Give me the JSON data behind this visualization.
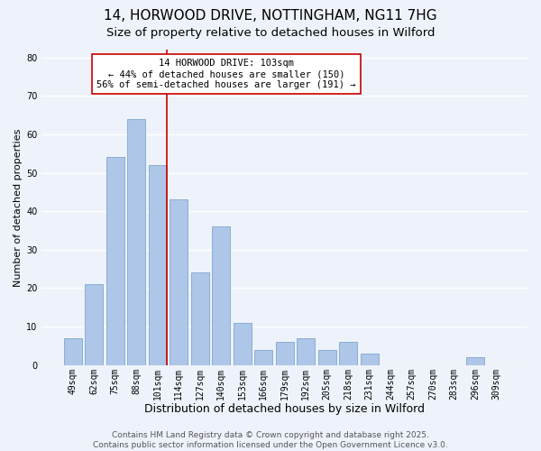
{
  "title": "14, HORWOOD DRIVE, NOTTINGHAM, NG11 7HG",
  "subtitle": "Size of property relative to detached houses in Wilford",
  "xlabel": "Distribution of detached houses by size in Wilford",
  "ylabel": "Number of detached properties",
  "categories": [
    "49sqm",
    "62sqm",
    "75sqm",
    "88sqm",
    "101sqm",
    "114sqm",
    "127sqm",
    "140sqm",
    "153sqm",
    "166sqm",
    "179sqm",
    "192sqm",
    "205sqm",
    "218sqm",
    "231sqm",
    "244sqm",
    "257sqm",
    "270sqm",
    "283sqm",
    "296sqm",
    "309sqm"
  ],
  "values": [
    7,
    21,
    54,
    64,
    52,
    43,
    24,
    36,
    11,
    4,
    6,
    7,
    4,
    6,
    3,
    0,
    0,
    0,
    0,
    2,
    0
  ],
  "bar_color": "#aec6e8",
  "bar_edge_color": "#88afd4",
  "vline_x_index": 4,
  "vline_color": "#cc0000",
  "annotation_text": "14 HORWOOD DRIVE: 103sqm\n← 44% of detached houses are smaller (150)\n56% of semi-detached houses are larger (191) →",
  "annotation_box_facecolor": "#ffffff",
  "annotation_box_edgecolor": "#cc0000",
  "ylim": [
    0,
    82
  ],
  "yticks": [
    0,
    10,
    20,
    30,
    40,
    50,
    60,
    70,
    80
  ],
  "background_color": "#eef2fa",
  "grid_color": "#ffffff",
  "footer_text": "Contains HM Land Registry data © Crown copyright and database right 2025.\nContains public sector information licensed under the Open Government Licence v3.0.",
  "title_fontsize": 11,
  "subtitle_fontsize": 9.5,
  "xlabel_fontsize": 9,
  "ylabel_fontsize": 8,
  "tick_fontsize": 7,
  "annotation_fontsize": 7.5,
  "footer_fontsize": 6.5
}
